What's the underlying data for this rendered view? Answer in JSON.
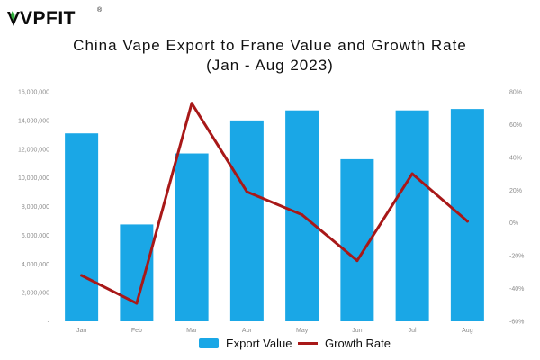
{
  "logo": {
    "text": "VPFIT",
    "reg_mark": "®"
  },
  "chart_data": {
    "type": "bar",
    "title": "China Vape Export to Frane Value and Growth Rate",
    "subtitle": "(Jan - Aug 2023)",
    "categories": [
      "Jan",
      "Feb",
      "Mar",
      "Apr",
      "May",
      "Jun",
      "Jul",
      "Aug"
    ],
    "series": [
      {
        "name": "Export Value",
        "type": "bar",
        "axis": "left",
        "color": "#1aa7e6",
        "values": [
          13100000,
          6750000,
          11700000,
          14000000,
          14700000,
          11300000,
          14700000,
          14800000
        ]
      },
      {
        "name": "Growth Rate",
        "type": "line",
        "axis": "right",
        "color": "#a81818",
        "values": [
          -32,
          -49,
          73,
          19,
          5,
          -23,
          30,
          1
        ]
      }
    ],
    "y_left": {
      "ylim": [
        0,
        16000000
      ],
      "tick_values": [
        0,
        2000000,
        4000000,
        6000000,
        8000000,
        10000000,
        12000000,
        14000000,
        16000000
      ],
      "tick_labels": [
        "-",
        "2,000,000",
        "4,000,000",
        "6,000,000",
        "8,000,000",
        "10,000,000",
        "12,000,000",
        "14,000,000",
        "16,000,000"
      ]
    },
    "y_right": {
      "ylim": [
        -60,
        80
      ],
      "tick_values": [
        -60,
        -40,
        -20,
        0,
        20,
        40,
        60,
        80
      ],
      "tick_labels": [
        "-60%",
        "-40%",
        "-20%",
        "0%",
        "20%",
        "40%",
        "60%",
        "80%"
      ]
    },
    "grid": false,
    "legend_position": "bottom-center"
  },
  "colors": {
    "bar": "#1aa7e6",
    "line": "#a81818",
    "logo_leaf": "#2eae3a"
  }
}
